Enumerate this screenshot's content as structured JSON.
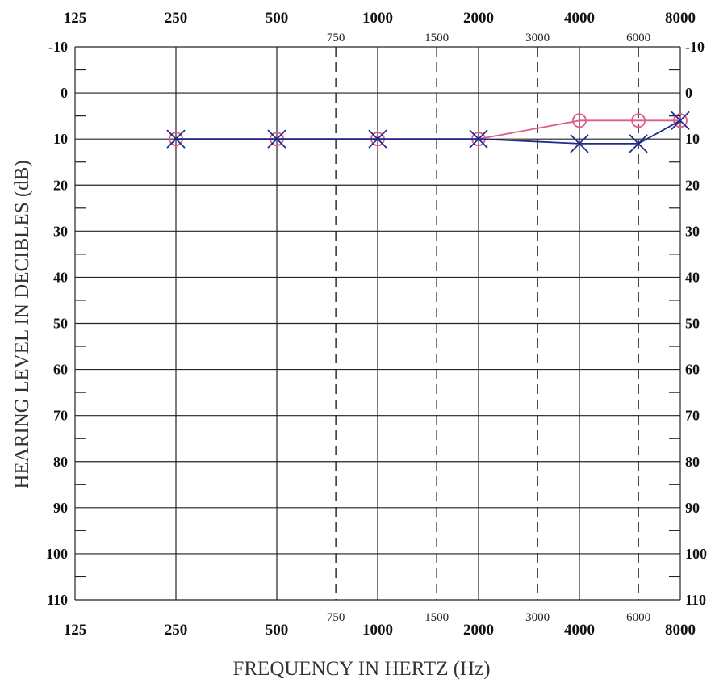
{
  "chart_data": {
    "type": "line",
    "title": "",
    "xlabel": "FREQUENCY IN HERTZ  (Hz)",
    "ylabel": "HEARING LEVEL IN DECIBLES (dB)",
    "x_scale": "log",
    "xlim": [
      125,
      8000
    ],
    "ylim": [
      -10,
      110
    ],
    "y_inverted": true,
    "grid": true,
    "x_major_ticks": [
      "125",
      "250",
      "500",
      "1000",
      "2000",
      "4000",
      "8000"
    ],
    "x_minor_ticks": [
      "750",
      "1500",
      "3000",
      "6000"
    ],
    "y_ticks": [
      "-10",
      "0",
      "10",
      "20",
      "30",
      "40",
      "50",
      "60",
      "70",
      "80",
      "90",
      "100",
      "110"
    ],
    "series": [
      {
        "marker": "O",
        "color": "#e05a8a",
        "x": [
          250,
          500,
          1000,
          2000,
          4000,
          6000,
          8000
        ],
        "y": [
          10,
          10,
          10,
          10,
          6,
          6,
          6
        ]
      },
      {
        "marker": "X",
        "color": "#1f2a8c",
        "x": [
          250,
          500,
          1000,
          2000,
          4000,
          6000,
          8000
        ],
        "y": [
          10,
          10,
          10,
          10,
          11,
          11,
          6
        ]
      }
    ]
  }
}
